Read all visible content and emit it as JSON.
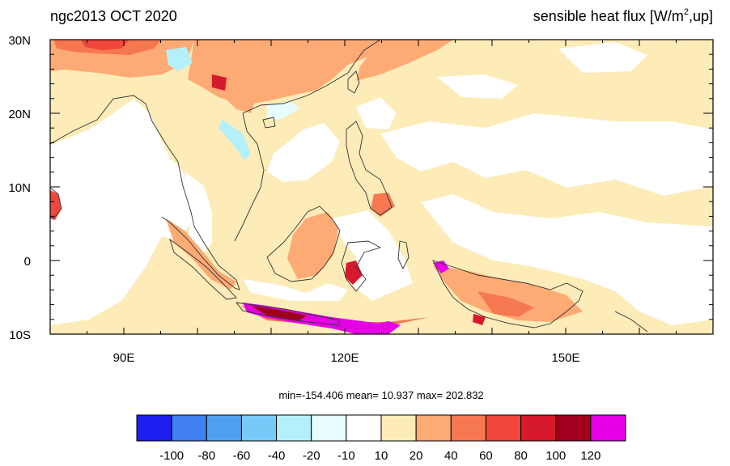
{
  "title_left": "ngc2013 OCT 2020",
  "title_right": {
    "prefix": "sensible heat flux [W/m",
    "superscript": "2",
    "suffix": ",up]"
  },
  "map": {
    "lon_range": [
      80,
      170
    ],
    "lat_range": [
      -10,
      30
    ],
    "y_tick_labels": [
      {
        "lat": 30,
        "label": "30N"
      },
      {
        "lat": 20,
        "label": "20N"
      },
      {
        "lat": 10,
        "label": "10N"
      },
      {
        "lat": 0,
        "label": "0"
      },
      {
        "lat": -10,
        "label": "10S"
      }
    ],
    "x_tick_labels": [
      {
        "lon": 90,
        "label": "90E"
      },
      {
        "lon": 120,
        "label": "120E"
      },
      {
        "lon": 150,
        "label": "150E"
      }
    ]
  },
  "stats": "min=-154.406  mean=  10.937  max= 202.832",
  "colorbar": {
    "colors": [
      "#1e1ef0",
      "#4080f0",
      "#50a0f0",
      "#78c8f8",
      "#b4f0fa",
      "#e6fcff",
      "#ffffff",
      "#fdebb8",
      "#fdaa75",
      "#f57850",
      "#f0463c",
      "#d7192d",
      "#a0001e",
      "#e600e6"
    ],
    "labels": [
      "-100",
      "-80",
      "-60",
      "-40",
      "-20",
      "-10",
      "10",
      "20",
      "40",
      "60",
      "80",
      "100",
      "120"
    ]
  }
}
